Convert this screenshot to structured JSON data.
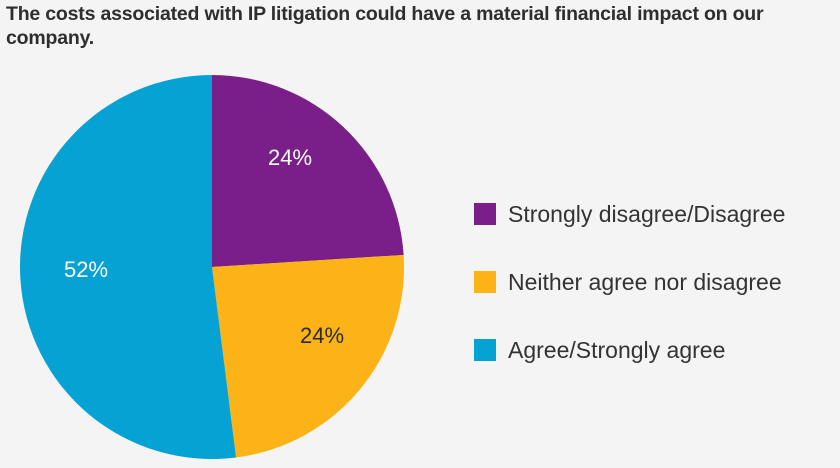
{
  "title": "The costs associated with IP litigation could have a material financial impact on our company.",
  "chart_data": {
    "type": "pie",
    "title": "The costs associated with IP litigation could have a material financial impact on our company.",
    "categories": [
      "Strongly disagree/Disagree",
      "Neither agree nor disagree",
      "Agree/Strongly agree"
    ],
    "values": [
      24,
      24,
      52
    ],
    "labels": [
      "24%",
      "24%",
      "52%"
    ],
    "colors": [
      "#7a1f8a",
      "#fbb317",
      "#07a2d4"
    ],
    "label_colors": [
      "#ffffff",
      "#2b2b2b",
      "#ffffff"
    ],
    "start_angle": "12 o'clock",
    "direction": "clockwise",
    "legend_position": "right"
  },
  "legend": {
    "items": [
      {
        "label": "Strongly disagree/Disagree",
        "color": "#7a1f8a"
      },
      {
        "label": "Neither agree nor disagree",
        "color": "#fbb317"
      },
      {
        "label": "Agree/Strongly agree",
        "color": "#07a2d4"
      }
    ]
  }
}
